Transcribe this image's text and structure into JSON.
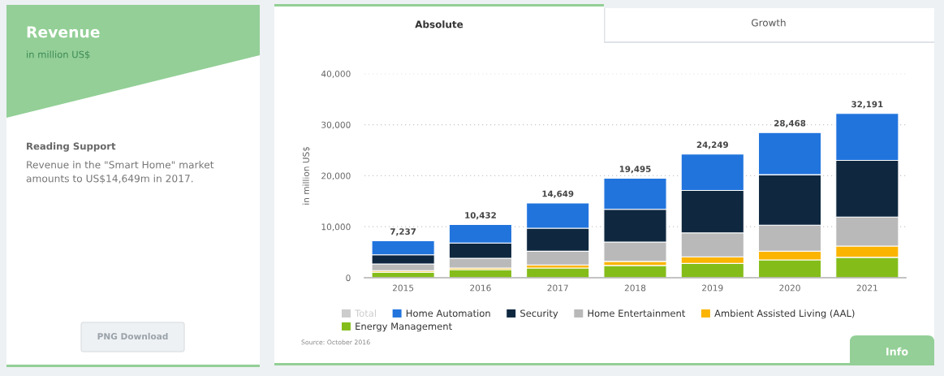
{
  "chart_data": {
    "type": "bar",
    "stacked": true,
    "title": "Revenue",
    "subtitle": "in million US$",
    "ylabel": "in million US$",
    "categories": [
      "2015",
      "2016",
      "2017",
      "2018",
      "2019",
      "2020",
      "2021"
    ],
    "series": [
      {
        "name": "Energy Management",
        "color": "#84bd19",
        "values": [
          1100,
          1600,
          1900,
          2400,
          2800,
          3500,
          4000
        ]
      },
      {
        "name": "Ambient Assisted Living (AAL)",
        "color": "#fbb400",
        "values": [
          300,
          300,
          600,
          800,
          1300,
          1700,
          2200
        ]
      },
      {
        "name": "Home Entertainment",
        "color": "#b9b9b9",
        "values": [
          1300,
          1900,
          2700,
          3800,
          4700,
          5100,
          5700
        ]
      },
      {
        "name": "Security",
        "color": "#0f2840",
        "values": [
          1800,
          3000,
          4500,
          6400,
          8300,
          9900,
          11100
        ]
      },
      {
        "name": "Home Automation",
        "color": "#2274dd",
        "values": [
          2737,
          3632,
          4949,
          6095,
          7149,
          8268,
          9191
        ]
      },
      {
        "name": "Total",
        "color": "#cccccc",
        "values": [
          null,
          null,
          null,
          null,
          null,
          null,
          null
        ]
      }
    ],
    "totals": [
      "7,237",
      "10,432",
      "14,649",
      "19,495",
      "24,249",
      "28,468",
      "32,191"
    ],
    "ylim": [
      0,
      40000
    ],
    "yticks": [
      0,
      {
        "value": 10000,
        "label": "10,000"
      },
      {
        "value": 20000,
        "label": "20,000"
      },
      {
        "value": 30000,
        "label": "30,000"
      },
      {
        "value": 40000,
        "label": "40,000"
      }
    ],
    "grid": "y",
    "legend": "bottom",
    "annotations": [
      "Reading Support",
      "Revenue in the \"Smart Home\" market amounts to US$14,649m in 2017.",
      "PNG Download",
      "Absolute",
      "Growth",
      "Source: October 2016",
      "Info"
    ]
  }
}
